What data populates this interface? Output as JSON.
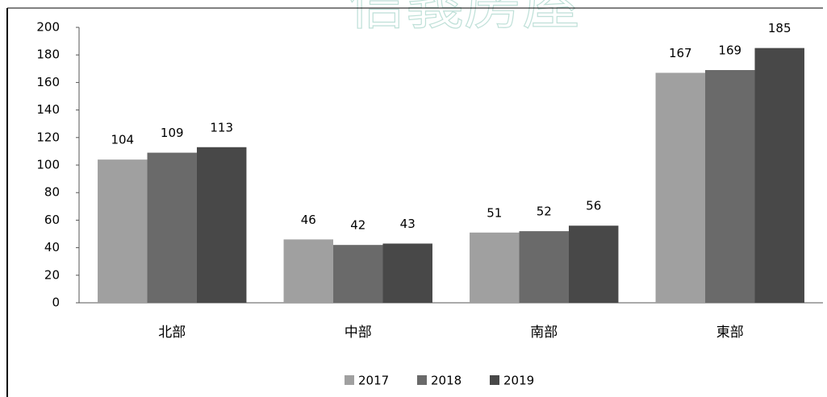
{
  "watermark": "信義房屋",
  "chart_data": {
    "type": "bar",
    "categories": [
      "北部",
      "中部",
      "南部",
      "東部"
    ],
    "series": [
      {
        "name": "2017",
        "color": "#a0a0a0",
        "values": [
          104,
          46,
          51,
          167
        ]
      },
      {
        "name": "2018",
        "color": "#6a6a6a",
        "values": [
          109,
          42,
          52,
          169
        ]
      },
      {
        "name": "2019",
        "color": "#484848",
        "values": [
          113,
          43,
          56,
          185
        ]
      }
    ],
    "ylim": [
      0,
      200
    ],
    "yticks": [
      0,
      20,
      40,
      60,
      80,
      100,
      120,
      140,
      160,
      180,
      200
    ],
    "legend": "bottom"
  }
}
